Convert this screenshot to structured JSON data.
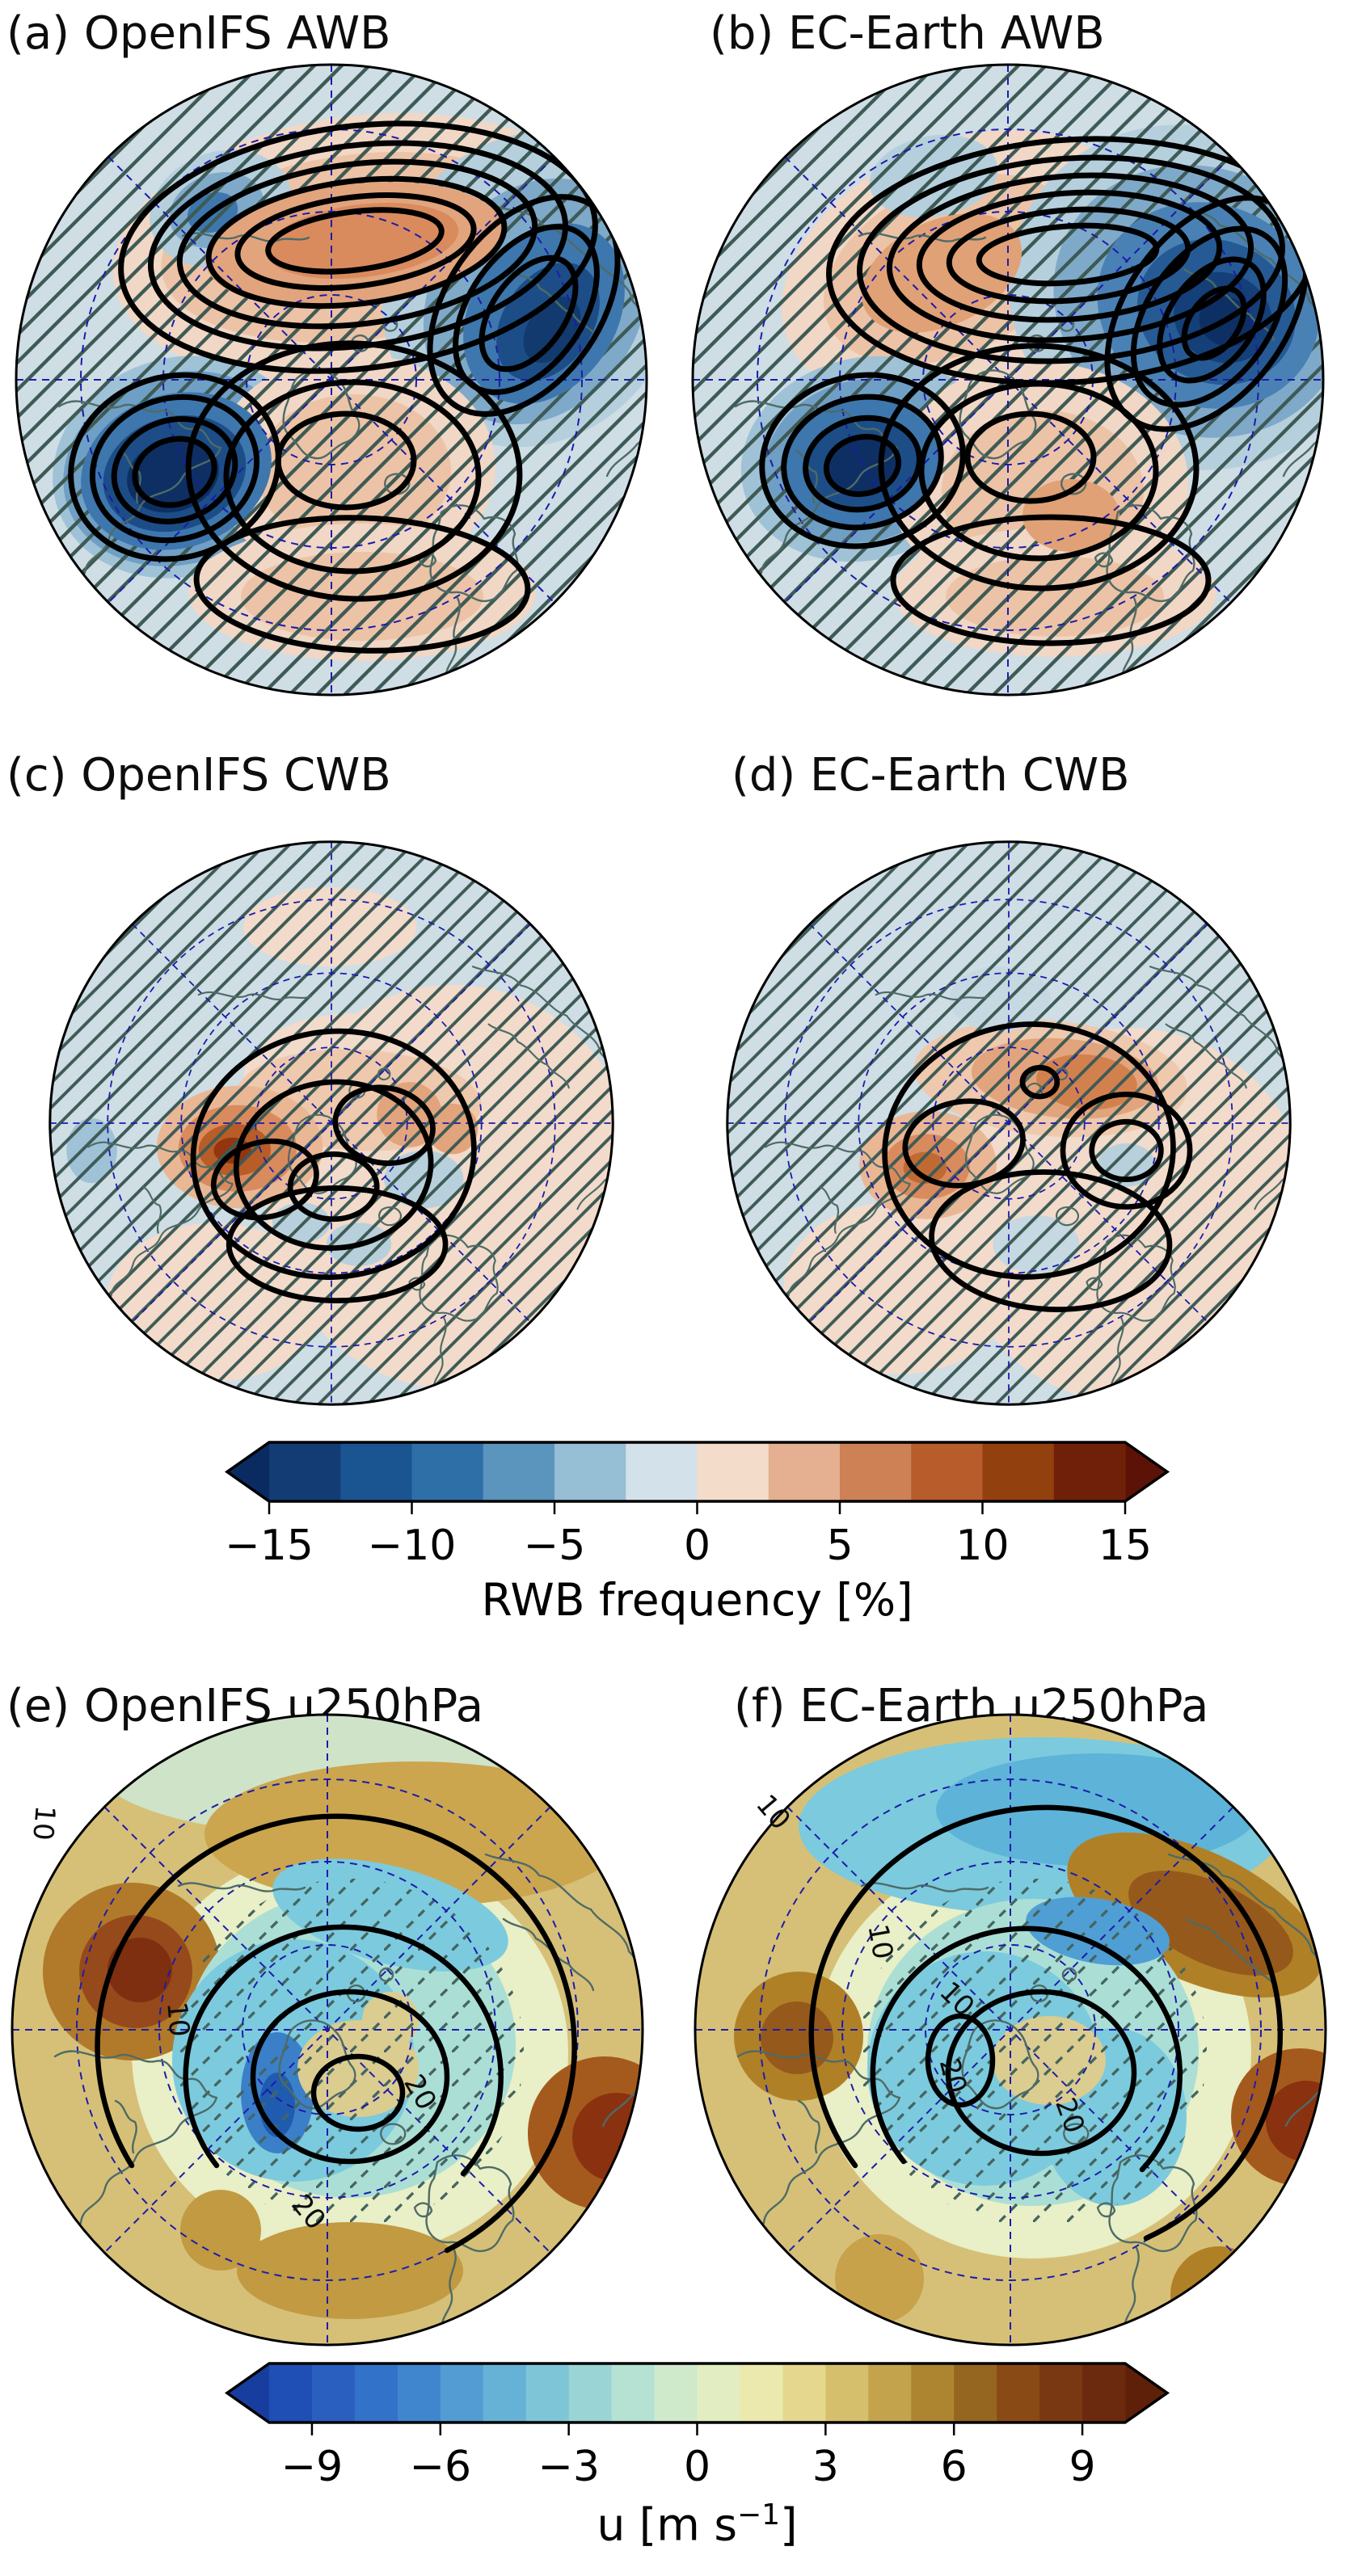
{
  "figure": {
    "background": "#ffffff",
    "kind": "Six-panel north-polar-stereographic map figure with two horizontal colorbars"
  },
  "panels": {
    "a": {
      "title": "(a) OpenIFS AWB"
    },
    "b": {
      "title": "(b) EC-Earth AWB"
    },
    "c": {
      "title": "(c) OpenIFS CWB"
    },
    "d": {
      "title": "(d) EC-Earth CWB"
    },
    "e": {
      "title": "(e) OpenIFS u250hPa",
      "contour_labels": [
        "10",
        "10",
        "20",
        "20"
      ]
    },
    "f": {
      "title": "(f) EC-Earth u250hPa",
      "contour_labels": [
        "10",
        "10",
        "10",
        "20",
        "20"
      ]
    }
  },
  "colorbar_rwb": {
    "label": "RWB frequency [%]",
    "range": [
      -15,
      15
    ],
    "ticks": [
      -15,
      -10,
      -5,
      0,
      5,
      10,
      15
    ],
    "tick_labels": [
      "−15",
      "−10",
      "−5",
      "0",
      "5",
      "10",
      "15"
    ],
    "extend": "both",
    "tip_left": "#0a2a62",
    "tip_right": "#5c1207",
    "colors": [
      "#123c73",
      "#1b5591",
      "#2f6fa8",
      "#5b94bd",
      "#96bed4",
      "#d3e1ea",
      "#f4dccb",
      "#e4b091",
      "#cd8155",
      "#b85c2b",
      "#93400f",
      "#702008"
    ]
  },
  "colorbar_u": {
    "label_prefix": "u [m s",
    "label_sup": "−1",
    "label_close": "]",
    "range": [
      -10,
      10
    ],
    "ticks": [
      -9,
      -6,
      -3,
      0,
      3,
      6,
      9
    ],
    "tick_labels": [
      "−9",
      "−6",
      "−3",
      "0",
      "3",
      "6",
      "9"
    ],
    "extend": "both",
    "tip_left": "#173e9e",
    "tip_right": "#5e2009",
    "colors": [
      "#1f4eb4",
      "#2a5fc0",
      "#3372c9",
      "#3f86cf",
      "#529cd3",
      "#66b2d6",
      "#7fc5d8",
      "#9ad4d5",
      "#b5e2d2",
      "#cfeacb",
      "#e2eec2",
      "#ebe9ae",
      "#e5d78e",
      "#d6bf6c",
      "#c3a34b",
      "#ad8430",
      "#95661f",
      "#8a4a16",
      "#7a3812",
      "#6b2a0e"
    ]
  },
  "chart_data": {
    "type": "map",
    "projection": "north_polar_stereographic",
    "panels": [
      {
        "id": "a",
        "title": "(a) OpenIFS AWB",
        "shading": "AWB frequency difference [%]",
        "overlay": "black contours + diagonal hatching"
      },
      {
        "id": "b",
        "title": "(b) EC-Earth AWB",
        "shading": "AWB frequency difference [%]",
        "overlay": "black contours + diagonal hatching"
      },
      {
        "id": "c",
        "title": "(c) OpenIFS CWB",
        "shading": "CWB frequency difference [%]",
        "overlay": "black contours + diagonal hatching"
      },
      {
        "id": "d",
        "title": "(d) EC-Earth CWB",
        "shading": "CWB frequency difference [%]",
        "overlay": "black contours + diagonal hatching"
      },
      {
        "id": "e",
        "title": "(e) OpenIFS u250hPa",
        "shading": "u at 250 hPa [m s−1]",
        "black_contour_labels": [
          10,
          20
        ],
        "overlay": "black contours + sparse hatching"
      },
      {
        "id": "f",
        "title": "(f) EC-Earth u250hPa",
        "shading": "u at 250 hPa [m s−1]",
        "black_contour_labels": [
          10,
          20
        ],
        "overlay": "black contours + sparse hatching"
      }
    ],
    "colorbars": [
      {
        "label": "RWB frequency [%]",
        "range": [
          -15,
          15
        ],
        "ticks": [
          -15,
          -10,
          -5,
          0,
          5,
          10,
          15
        ],
        "segment_step": 2.5,
        "n_segments": 12,
        "extend": "both"
      },
      {
        "label": "u [m s−1]",
        "range": [
          -10,
          10
        ],
        "ticks": [
          -9,
          -6,
          -3,
          0,
          3,
          6,
          9
        ],
        "segment_step": 1,
        "n_segments": 20,
        "extend": "both"
      }
    ],
    "graticule": {
      "style": "dashed navy",
      "meridians_every_deg": 45,
      "latitude_circles": 3
    },
    "hatching_style": "diagonal ( / ) dark slate lines",
    "coastline_color": "#4e6b66",
    "graticule_color": "#1c1caa",
    "contour_color": "#000000"
  }
}
